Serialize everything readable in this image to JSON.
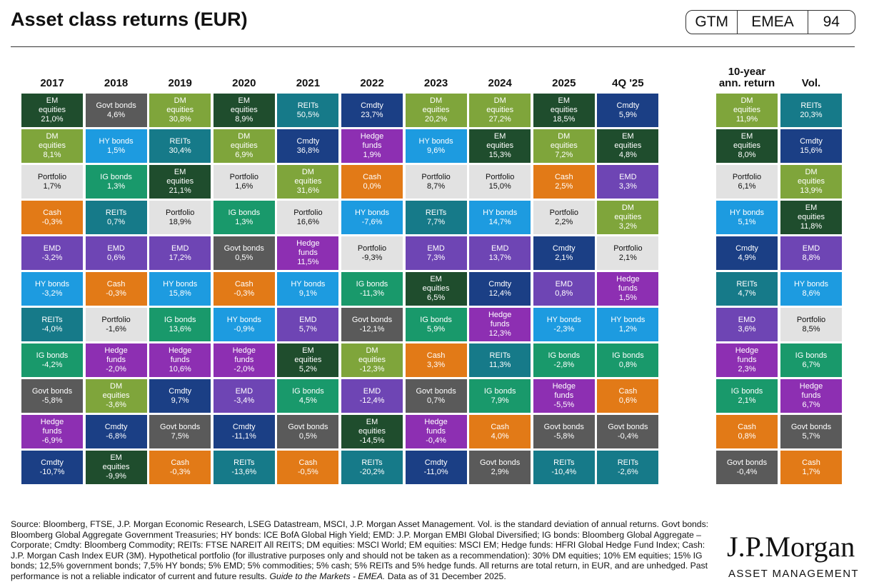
{
  "header": {
    "title": "Asset class returns (EUR)",
    "badge": [
      "GTM",
      "EMEA",
      "94"
    ]
  },
  "columns": [
    {
      "header": "2017",
      "cells": [
        [
          "EM\nequities",
          "21,0%"
        ],
        [
          "DM\nequities",
          "8,1%"
        ],
        [
          "Portfolio",
          "1,7%"
        ],
        [
          "Cash",
          "-0,3%"
        ],
        [
          "EMD",
          "-3,2%"
        ],
        [
          "HY bonds",
          "-3,2%"
        ],
        [
          "REITs",
          "-4,0%"
        ],
        [
          "IG bonds",
          "-4,2%"
        ],
        [
          "Govt bonds",
          "-5,8%"
        ],
        [
          "Hedge\nfunds",
          "-6,9%"
        ],
        [
          "Cmdty",
          "-10,7%"
        ]
      ]
    },
    {
      "header": "2018",
      "cells": [
        [
          "Govt bonds",
          "4,6%"
        ],
        [
          "HY bonds",
          "1,5%"
        ],
        [
          "IG bonds",
          "1,3%"
        ],
        [
          "REITs",
          "0,7%"
        ],
        [
          "EMD",
          "0,6%"
        ],
        [
          "Cash",
          "-0,3%"
        ],
        [
          "Portfolio",
          "-1,6%"
        ],
        [
          "Hedge\nfunds",
          "-2,0%"
        ],
        [
          "DM\nequities",
          "-3,6%"
        ],
        [
          "Cmdty",
          "-6,8%"
        ],
        [
          "EM\nequities",
          "-9,9%"
        ]
      ]
    },
    {
      "header": "2019",
      "cells": [
        [
          "DM\nequities",
          "30,8%"
        ],
        [
          "REITs",
          "30,4%"
        ],
        [
          "EM\nequities",
          "21,1%"
        ],
        [
          "Portfolio",
          "18,9%"
        ],
        [
          "EMD",
          "17,2%"
        ],
        [
          "HY bonds",
          "15,8%"
        ],
        [
          "IG bonds",
          "13,6%"
        ],
        [
          "Hedge\nfunds",
          "10,6%"
        ],
        [
          "Cmdty",
          "9,7%"
        ],
        [
          "Govt bonds",
          "7,5%"
        ],
        [
          "Cash",
          "-0,3%"
        ]
      ]
    },
    {
      "header": "2020",
      "cells": [
        [
          "EM\nequities",
          "8,9%"
        ],
        [
          "DM\nequities",
          "6,9%"
        ],
        [
          "Portfolio",
          "1,6%"
        ],
        [
          "IG bonds",
          "1,3%"
        ],
        [
          "Govt bonds",
          "0,5%"
        ],
        [
          "Cash",
          "-0,3%"
        ],
        [
          "HY bonds",
          "-0,9%"
        ],
        [
          "Hedge\nfunds",
          "-2,0%"
        ],
        [
          "EMD",
          "-3,4%"
        ],
        [
          "Cmdty",
          "-11,1%"
        ],
        [
          "REITs",
          "-13,6%"
        ]
      ]
    },
    {
      "header": "2021",
      "cells": [
        [
          "REITs",
          "50,5%"
        ],
        [
          "Cmdty",
          "36,8%"
        ],
        [
          "DM\nequities",
          "31,6%"
        ],
        [
          "Portfolio",
          "16,6%"
        ],
        [
          "Hedge\nfunds",
          "11,5%"
        ],
        [
          "HY bonds",
          "9,1%"
        ],
        [
          "EMD",
          "5,7%"
        ],
        [
          "EM\nequities",
          "5,2%"
        ],
        [
          "IG bonds",
          "4,5%"
        ],
        [
          "Govt bonds",
          "0,5%"
        ],
        [
          "Cash",
          "-0,5%"
        ]
      ]
    },
    {
      "header": "2022",
      "cells": [
        [
          "Cmdty",
          "23,7%"
        ],
        [
          "Hedge\nfunds",
          "1,9%"
        ],
        [
          "Cash",
          "0,0%"
        ],
        [
          "HY bonds",
          "-7,6%"
        ],
        [
          "Portfolio",
          "-9,3%"
        ],
        [
          "IG bonds",
          "-11,3%"
        ],
        [
          "Govt bonds",
          "-12,1%"
        ],
        [
          "DM\nequities",
          "-12,3%"
        ],
        [
          "EMD",
          "-12,4%"
        ],
        [
          "EM\nequities",
          "-14,5%"
        ],
        [
          "REITs",
          "-20,2%"
        ]
      ]
    },
    {
      "header": "2023",
      "cells": [
        [
          "DM\nequities",
          "20,2%"
        ],
        [
          "HY bonds",
          "9,6%"
        ],
        [
          "Portfolio",
          "8,7%"
        ],
        [
          "REITs",
          "7,7%"
        ],
        [
          "EMD",
          "7,3%"
        ],
        [
          "EM\nequities",
          "6,5%"
        ],
        [
          "IG bonds",
          "5,9%"
        ],
        [
          "Cash",
          "3,3%"
        ],
        [
          "Govt bonds",
          "0,7%"
        ],
        [
          "Hedge\nfunds",
          "-0,4%"
        ],
        [
          "Cmdty",
          "-11,0%"
        ]
      ]
    },
    {
      "header": "2024",
      "cells": [
        [
          "DM\nequities",
          "27,2%"
        ],
        [
          "EM\nequities",
          "15,3%"
        ],
        [
          "Portfolio",
          "15,0%"
        ],
        [
          "HY bonds",
          "14,7%"
        ],
        [
          "EMD",
          "13,7%"
        ],
        [
          "Cmdty",
          "12,4%"
        ],
        [
          "Hedge\nfunds",
          "12,3%"
        ],
        [
          "REITs",
          "11,3%"
        ],
        [
          "IG bonds",
          "7,9%"
        ],
        [
          "Cash",
          "4,0%"
        ],
        [
          "Govt bonds",
          "2,9%"
        ]
      ]
    },
    {
      "header": "2025",
      "cells": [
        [
          "EM\nequities",
          "18,5%"
        ],
        [
          "DM\nequities",
          "7,2%"
        ],
        [
          "Cash",
          "2,5%"
        ],
        [
          "Portfolio",
          "2,2%"
        ],
        [
          "Cmdty",
          "2,1%"
        ],
        [
          "EMD",
          "0,8%"
        ],
        [
          "HY bonds",
          "-2,3%"
        ],
        [
          "IG bonds",
          "-2,8%"
        ],
        [
          "Hedge\nfunds",
          "-5,5%"
        ],
        [
          "Govt bonds",
          "-5,8%"
        ],
        [
          "REITs",
          "-10,4%"
        ]
      ]
    },
    {
      "header": "4Q '25",
      "cells": [
        [
          "Cmdty",
          "5,9%"
        ],
        [
          "EM\nequities",
          "4,8%"
        ],
        [
          "EMD",
          "3,3%"
        ],
        [
          "DM\nequities",
          "3,2%"
        ],
        [
          "Portfolio",
          "2,1%"
        ],
        [
          "Hedge\nfunds",
          "1,5%"
        ],
        [
          "HY bonds",
          "1,2%"
        ],
        [
          "IG bonds",
          "0,8%"
        ],
        [
          "Cash",
          "0,6%"
        ],
        [
          "Govt bonds",
          "-0,4%"
        ],
        [
          "REITs",
          "-2,6%"
        ]
      ]
    },
    {
      "header": "10-year\nann. return",
      "cells": [
        [
          "DM\nequities",
          "11,9%"
        ],
        [
          "EM\nequities",
          "8,0%"
        ],
        [
          "Portfolio",
          "6,1%"
        ],
        [
          "HY bonds",
          "5,1%"
        ],
        [
          "Cmdty",
          "4,9%"
        ],
        [
          "REITs",
          "4,7%"
        ],
        [
          "EMD",
          "3,6%"
        ],
        [
          "Hedge\nfunds",
          "2,3%"
        ],
        [
          "IG bonds",
          "2,1%"
        ],
        [
          "Cash",
          "0,8%"
        ],
        [
          "Govt bonds",
          "-0,4%"
        ]
      ]
    },
    {
      "header": "Vol.",
      "cells": [
        [
          "REITs",
          "20,3%"
        ],
        [
          "Cmdty",
          "15,6%"
        ],
        [
          "DM\nequities",
          "13,9%"
        ],
        [
          "EM\nequities",
          "11,8%"
        ],
        [
          "EMD",
          "8,8%"
        ],
        [
          "HY bonds",
          "8,6%"
        ],
        [
          "Portfolio",
          "8,5%"
        ],
        [
          "IG bonds",
          "6,7%"
        ],
        [
          "Hedge\nfunds",
          "6,7%"
        ],
        [
          "Govt bonds",
          "5,7%"
        ],
        [
          "Cash",
          "1,7%"
        ]
      ]
    }
  ],
  "asset_colors": {
    "EM\nequities": "#1f4d2d",
    "DM\nequities": "#7fa53b",
    "Govt bonds": "#5a5a5a",
    "HY bonds": "#1d9be0",
    "IG bonds": "#19996b",
    "REITs": "#167a89",
    "Cmdty": "#1b3f85",
    "Hedge\nfunds": "#8d2fb2",
    "Cash": "#e27a17",
    "EMD": "#6e45b4",
    "Portfolio": "#e2e2e2"
  },
  "footnote": {
    "text": "Source: Bloomberg, FTSE, J.P. Morgan Economic Research, LSEG Datastream, MSCI, J.P. Morgan Asset Management. Vol. is the standard deviation of annual returns. Govt bonds: Bloomberg Global Aggregate Government Treasuries; HY bonds: ICE BofA Global High Yield; EMD: J.P. Morgan EMBI Global Diversified; IG bonds: Bloomberg Global Aggregate – Corporate; Cmdty: Bloomberg Commodity; REITs: FTSE NAREIT All REITS; DM equities: MSCI World; EM equities: MSCI EM; Hedge funds: HFRI Global Hedge Fund Index; Cash: J.P. Morgan Cash Index EUR (3M). Hypothetical portfolio (for illustrative purposes only and should not be taken as a recommendation): 30% DM equities; 10% EM equities; 15% IG bonds; 12,5% government bonds; 7,5% HY bonds; 5% EMD; 5% commodities; 5% cash; 5% REITs and 5% hedge funds. All returns are total return, in EUR, and are unhedged. Past performance is not a reliable indicator of current and future results.",
    "italic": "Guide to the Markets - EMEA.",
    "tail": "Data as of 31 December 2025."
  },
  "logo": {
    "name": "J.P.Morgan",
    "sub": "ASSET MANAGEMENT"
  }
}
